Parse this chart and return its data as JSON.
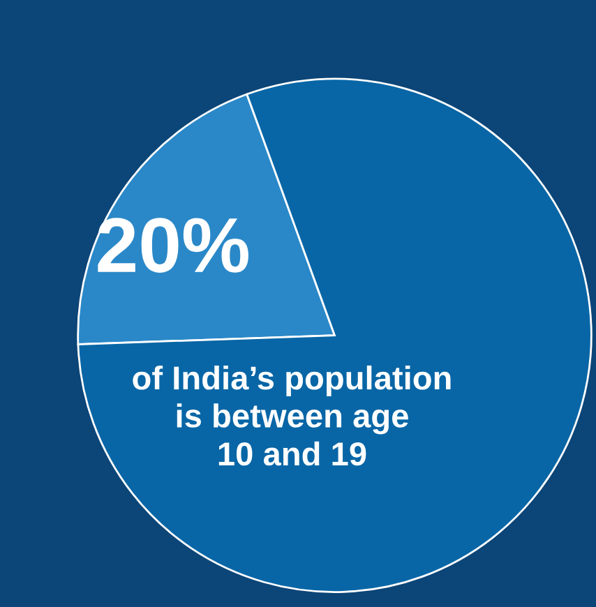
{
  "chart_data": {
    "type": "pie",
    "categories": [
      null,
      null
    ],
    "values": [
      20,
      80
    ],
    "colors": [
      "#2a88c8",
      "#0866a6"
    ],
    "value_labels": [
      "20%",
      null
    ],
    "annotations": [
      "of India’s population\nis between age\n10 and 19"
    ]
  }
}
